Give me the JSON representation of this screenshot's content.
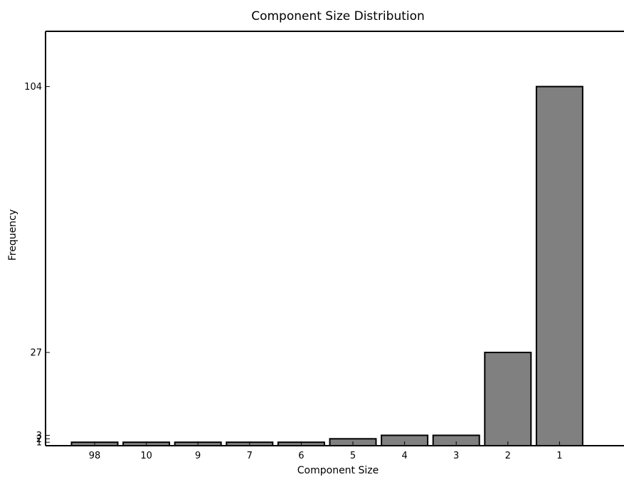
{
  "chart_data": {
    "type": "bar",
    "title": "Component Size Distribution",
    "xlabel": "Component Size",
    "ylabel": "Frequency",
    "categories": [
      "98",
      "10",
      "9",
      "7",
      "6",
      "5",
      "4",
      "3",
      "2",
      "1"
    ],
    "values": [
      1,
      1,
      1,
      1,
      1,
      2,
      3,
      3,
      27,
      104
    ],
    "yticks": [
      1,
      2,
      3,
      27,
      104
    ],
    "ylim": [
      0,
      120
    ],
    "grid": false,
    "bar_color": "#808080",
    "edge_color": "#000000"
  }
}
